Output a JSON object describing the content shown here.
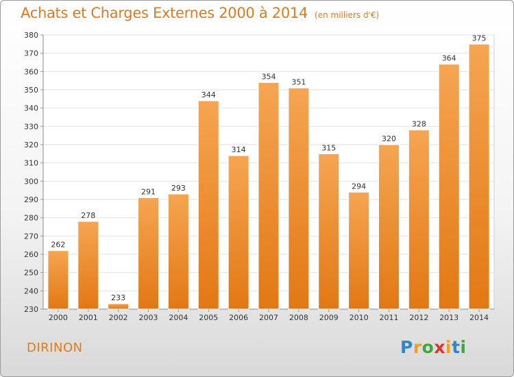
{
  "chart_data": {
    "type": "bar",
    "title": "Achats et Charges Externes 2000 à 2014",
    "unit_label": "(en milliers d'€)",
    "categories": [
      "2000",
      "2001",
      "2002",
      "2003",
      "2004",
      "2005",
      "2006",
      "2007",
      "2008",
      "2009",
      "2010",
      "2011",
      "2012",
      "2013",
      "2014"
    ],
    "values": [
      262,
      278,
      233,
      291,
      293,
      344,
      314,
      354,
      351,
      315,
      294,
      320,
      328,
      364,
      375
    ],
    "ylim": [
      230,
      380
    ],
    "yticks": [
      230,
      240,
      250,
      260,
      270,
      280,
      290,
      300,
      310,
      320,
      330,
      340,
      350,
      360,
      370,
      380
    ],
    "grid": true,
    "bar_color": "#f0922e"
  },
  "location": "DIRINON",
  "logo": {
    "letters": [
      "P",
      "r",
      "o",
      "x",
      "i",
      "t",
      "i"
    ],
    "colors": [
      "#2f86c9",
      "#f0a020",
      "#3aaa3a",
      "#e0342b",
      "#f0a020",
      "#2f86c9",
      "#3aaa3a"
    ]
  }
}
